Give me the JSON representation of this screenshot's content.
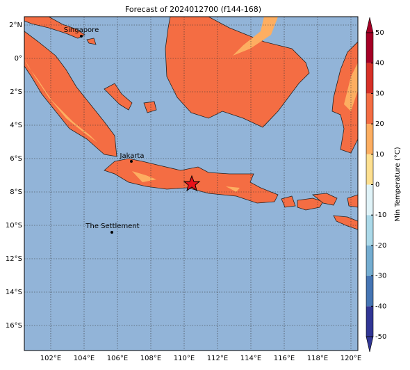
{
  "title": "Forecast of 2024012700 (f144-168)",
  "latitude_labels": [
    {
      "value": 2,
      "label": "2°N"
    },
    {
      "value": 0,
      "label": "0°"
    },
    {
      "value": -2,
      "label": "2°S"
    },
    {
      "value": -4,
      "label": "4°S"
    },
    {
      "value": -6,
      "label": "6°S"
    },
    {
      "value": -8,
      "label": "8°S"
    },
    {
      "value": -10,
      "label": "10°S"
    },
    {
      "value": -12,
      "label": "12°S"
    },
    {
      "value": -14,
      "label": "14°S"
    },
    {
      "value": -16,
      "label": "16°S"
    }
  ],
  "longitude_labels": [
    {
      "value": 102,
      "label": "102°E"
    },
    {
      "value": 104,
      "label": "104°E"
    },
    {
      "value": 106,
      "label": "106°E"
    },
    {
      "value": 108,
      "label": "108°E"
    },
    {
      "value": 110,
      "label": "110°E"
    },
    {
      "value": 112,
      "label": "112°E"
    },
    {
      "value": 114,
      "label": "114°E"
    },
    {
      "value": 116,
      "label": "116°E"
    },
    {
      "value": 118,
      "label": "118°E"
    },
    {
      "value": 120,
      "label": "120°E"
    }
  ],
  "places": [
    "Singapore",
    "Jakarta",
    "The Settlement"
  ],
  "colorbar": {
    "label": "Min Temperature (°C)",
    "ticks": [
      -50,
      -40,
      -30,
      -20,
      -10,
      0,
      10,
      20,
      30,
      40,
      50
    ],
    "colors": [
      "#313695",
      "#4575b4",
      "#74add1",
      "#abd9e9",
      "#e0f3f8",
      "#fee090",
      "#fdae61",
      "#f46d43",
      "#d73027",
      "#a50026"
    ]
  }
}
